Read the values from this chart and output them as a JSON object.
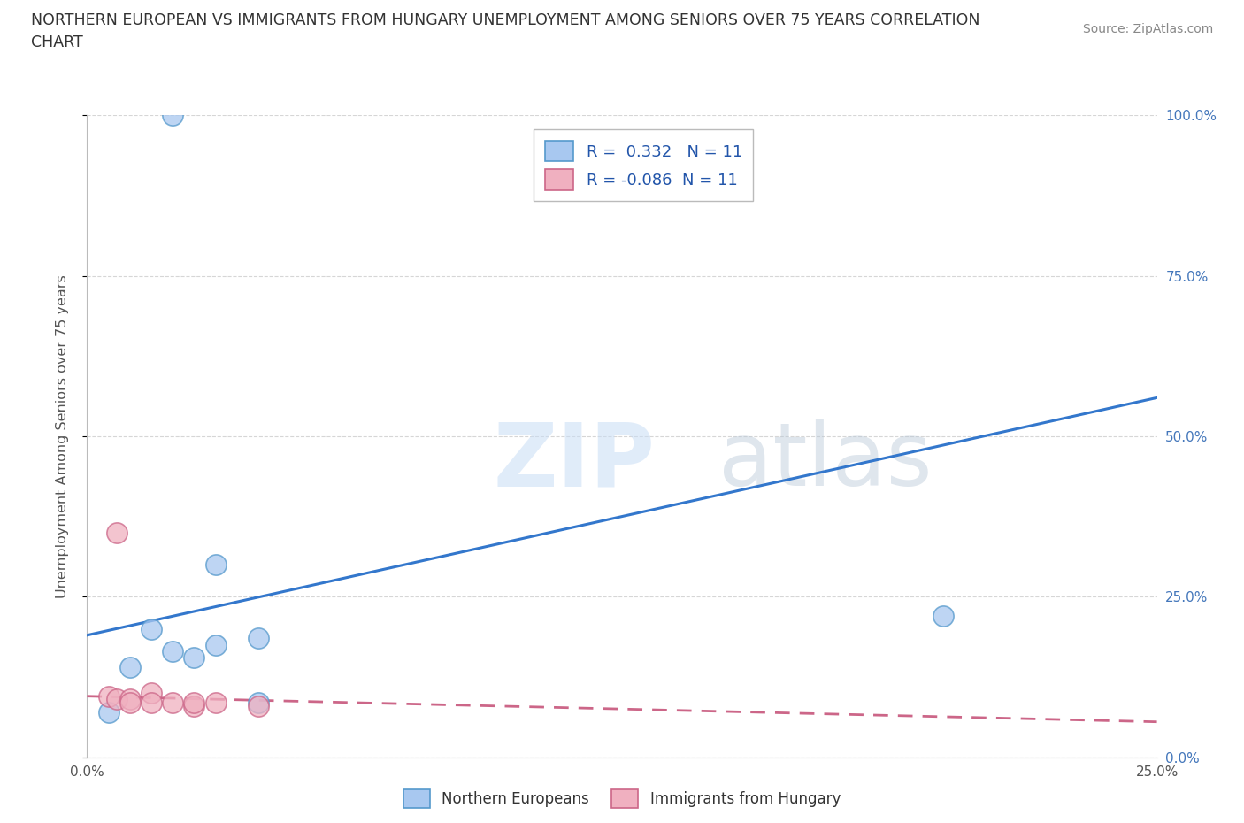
{
  "title_line1": "NORTHERN EUROPEAN VS IMMIGRANTS FROM HUNGARY UNEMPLOYMENT AMONG SENIORS OVER 75 YEARS CORRELATION",
  "title_line2": "CHART",
  "source": "Source: ZipAtlas.com",
  "ylabel": "Unemployment Among Seniors over 75 years",
  "xmin": 0.0,
  "xmax": 0.25,
  "ymin": 0.0,
  "ymax": 1.0,
  "yticks": [
    0.0,
    0.25,
    0.5,
    0.75,
    1.0
  ],
  "ytick_labels_right": [
    "0.0%",
    "25.0%",
    "50.0%",
    "75.0%",
    "100.0%"
  ],
  "xticks": [
    0.0,
    0.05,
    0.1,
    0.15,
    0.2,
    0.25
  ],
  "xtick_labels": [
    "0.0%",
    "",
    "",
    "",
    "",
    "25.0%"
  ],
  "northern_european_x": [
    0.005,
    0.01,
    0.015,
    0.02,
    0.025,
    0.03,
    0.03,
    0.04,
    0.04,
    0.2,
    0.02
  ],
  "northern_european_y": [
    0.07,
    0.14,
    0.2,
    0.165,
    0.155,
    0.3,
    0.175,
    0.185,
    0.085,
    0.22,
    1.0
  ],
  "hungary_x": [
    0.005,
    0.007,
    0.01,
    0.01,
    0.015,
    0.015,
    0.02,
    0.025,
    0.025,
    0.03,
    0.04
  ],
  "hungary_y": [
    0.095,
    0.09,
    0.09,
    0.085,
    0.1,
    0.085,
    0.085,
    0.08,
    0.085,
    0.085,
    0.08
  ],
  "hungary_x_outlier": [
    0.007
  ],
  "hungary_y_outlier": [
    0.35
  ],
  "ne_color": "#a8c8f0",
  "ne_edge_color": "#5599cc",
  "hungary_color": "#f0b0c0",
  "hungary_edge_color": "#cc6688",
  "ne_trend_color": "#3377cc",
  "hungary_trend_color": "#cc6688",
  "ne_R": 0.332,
  "ne_N": 11,
  "hungary_R": -0.086,
  "hungary_N": 11,
  "watermark_zip": "ZIP",
  "watermark_atlas": "atlas",
  "legend_ne": "Northern Europeans",
  "legend_hungary": "Immigrants from Hungary",
  "background_color": "#ffffff",
  "grid_color": "#cccccc",
  "trend_ne_x0": 0.0,
  "trend_ne_y0": 0.19,
  "trend_ne_x1": 0.25,
  "trend_ne_y1": 0.56,
  "trend_hu_x0": 0.0,
  "trend_hu_y0": 0.095,
  "trend_hu_x1": 0.25,
  "trend_hu_y1": 0.055
}
